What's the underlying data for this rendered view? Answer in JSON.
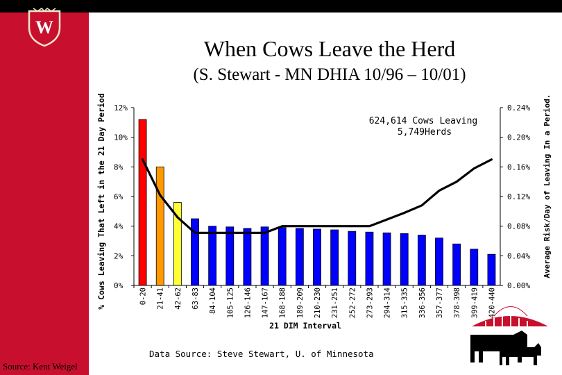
{
  "header": {
    "title": "When Cows Leave the Herd",
    "subtitle": "(S. Stewart - MN DHIA 10/96 – 10/01)"
  },
  "footer": {
    "source_left": "Source: Kent Weigel",
    "data_source": "Data Source: Steve Stewart, U. of Minnesota"
  },
  "logo": {
    "name": "university-crest",
    "letter": "W"
  },
  "colors": {
    "side_panel": "#c8102e",
    "top_band": "#000000",
    "bar_blue": "#0000ff",
    "bar_red": "#ff0000",
    "bar_orange": "#ff9900",
    "bar_yellow": "#ffff33",
    "line": "#000000"
  },
  "chart_data": {
    "type": "bar",
    "annotation": [
      "624,614 Cows Leaving",
      "5,749Herds"
    ],
    "xlabel": "21 DIM Interval",
    "ylabel_left": "% Cows Leaving That Left in the 21 Day Period",
    "ylabel_right": "Average Risk/Day of Leaving In a Period.",
    "ylim_left": [
      0,
      12
    ],
    "yticks_left": [
      "0%",
      "2%",
      "4%",
      "6%",
      "8%",
      "10%",
      "12%"
    ],
    "ylim_right": [
      0,
      0.24
    ],
    "yticks_right": [
      "0.00%",
      "0.04%",
      "0.08%",
      "0.12%",
      "0.16%",
      "0.20%",
      "0.24%"
    ],
    "grid": false,
    "categories": [
      "0-20",
      "21-41",
      "42-62",
      "63-83",
      "84-104",
      "105-125",
      "126-146",
      "147-167",
      "168-188",
      "189-209",
      "210-230",
      "231-251",
      "252-272",
      "273-293",
      "294-314",
      "315-335",
      "336-356",
      "357-377",
      "378-398",
      "399-419",
      "420-440"
    ],
    "series": [
      {
        "axis": "left",
        "values": [
          11.2,
          8.0,
          5.6,
          4.5,
          4.0,
          3.95,
          3.85,
          3.95,
          3.9,
          3.85,
          3.8,
          3.75,
          3.65,
          3.6,
          3.55,
          3.5,
          3.4,
          3.2,
          2.8,
          2.45,
          2.1
        ],
        "colors": [
          "#ff0000",
          "#ff9900",
          "#ffff33",
          "#0000ff",
          "#0000ff",
          "#0000ff",
          "#0000ff",
          "#0000ff",
          "#0000ff",
          "#0000ff",
          "#0000ff",
          "#0000ff",
          "#0000ff",
          "#0000ff",
          "#0000ff",
          "#0000ff",
          "#0000ff",
          "#0000ff",
          "#0000ff",
          "#0000ff",
          "#0000ff"
        ]
      },
      {
        "axis": "right",
        "type": "line",
        "values": [
          0.17,
          0.122,
          0.092,
          0.071,
          0.071,
          0.071,
          0.071,
          0.071,
          0.08,
          0.08,
          0.08,
          0.08,
          0.08,
          0.08,
          0.089,
          0.098,
          0.108,
          0.128,
          0.14,
          0.158,
          0.17
        ]
      }
    ]
  }
}
